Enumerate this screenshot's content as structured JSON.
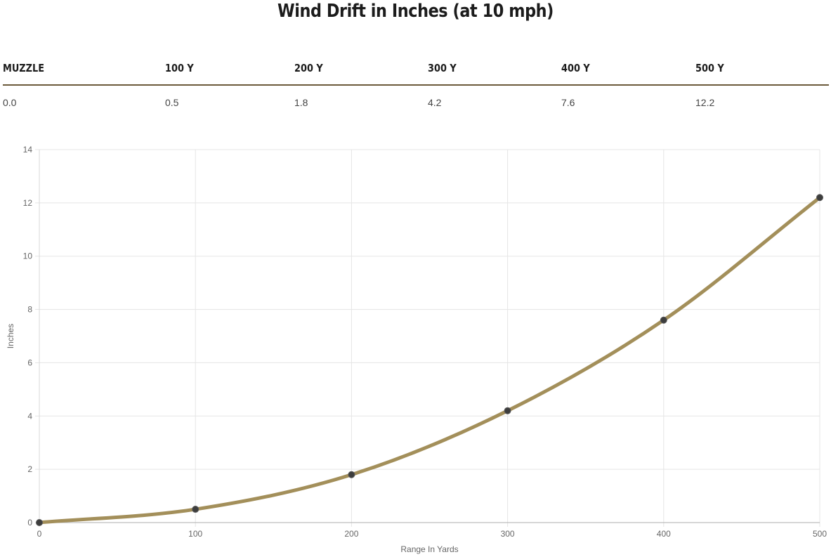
{
  "page": {
    "title": "Wind Drift in Inches (at 10 mph)"
  },
  "table": {
    "headers": [
      "MUZZLE",
      "100 Y",
      "200 Y",
      "300 Y",
      "400 Y",
      "500 Y"
    ],
    "values": [
      "0.0",
      "0.5",
      "1.8",
      "4.2",
      "7.6",
      "12.2"
    ]
  },
  "colors": {
    "line": "#a38f5a",
    "point": "#3d3d3d",
    "rule": "#6b5a3a",
    "grid": "#e5e5e5"
  },
  "chart_data": {
    "type": "line",
    "title": "",
    "xlabel": "Range In Yards",
    "ylabel": "Inches",
    "x": [
      0,
      100,
      200,
      300,
      400,
      500
    ],
    "series": [
      {
        "values": [
          0.0,
          0.5,
          1.8,
          4.2,
          7.6,
          12.2
        ]
      }
    ],
    "xlim": [
      0,
      500
    ],
    "ylim": [
      0,
      14
    ],
    "xticks": [
      "0",
      "100",
      "200",
      "300",
      "400",
      "500"
    ],
    "yticks": [
      "0",
      "2",
      "4",
      "6",
      "8",
      "10",
      "12",
      "14"
    ],
    "grid": true,
    "legend": "none"
  }
}
